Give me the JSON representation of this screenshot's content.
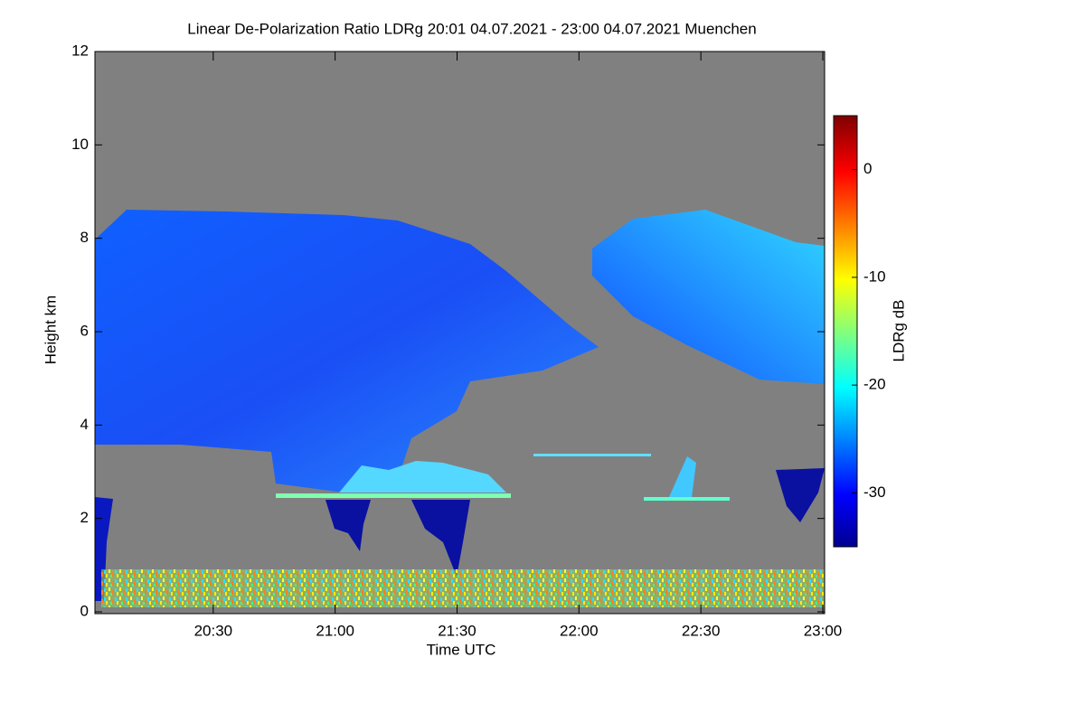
{
  "chart_data": {
    "type": "heatmap",
    "title": "Linear De-Polarization Ratio LDRg   20:01 04.07.2021 - 23:00 04.07.2021 Muenchen",
    "x_label": "Time UTC",
    "y_label": "Height km",
    "colorbar_label": "LDRg dB",
    "xlim": [
      1201,
      1380
    ],
    "xticks": [
      {
        "value": 1230,
        "label": "20:30"
      },
      {
        "value": 1260,
        "label": "21:00"
      },
      {
        "value": 1290,
        "label": "21:30"
      },
      {
        "value": 1320,
        "label": "22:00"
      },
      {
        "value": 1350,
        "label": "22:30"
      },
      {
        "value": 1380,
        "label": "23:00"
      }
    ],
    "ylim": [
      0,
      12
    ],
    "yticks": [
      0,
      2,
      4,
      6,
      8,
      10,
      12
    ],
    "clim": [
      -35,
      5
    ],
    "cticks": [
      -30,
      -20,
      -10,
      0
    ]
  }
}
